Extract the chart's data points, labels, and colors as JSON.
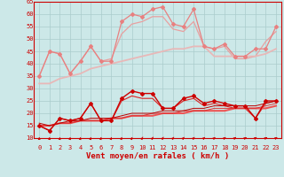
{
  "title": "",
  "xlabel": "Vent moyen/en rafales ( km/h )",
  "bg_color": "#cce8e8",
  "grid_color": "#aacccc",
  "x": [
    0,
    1,
    2,
    3,
    4,
    5,
    6,
    7,
    8,
    9,
    10,
    11,
    12,
    13,
    14,
    15,
    16,
    17,
    18,
    19,
    20,
    21,
    22,
    23
  ],
  "ylim": [
    10,
    65
  ],
  "yticks": [
    10,
    15,
    20,
    25,
    30,
    35,
    40,
    45,
    50,
    55,
    60,
    65
  ],
  "series": [
    {
      "data": [
        35,
        45,
        44,
        36,
        41,
        47,
        41,
        41,
        57,
        60,
        59,
        62,
        63,
        56,
        55,
        62,
        47,
        46,
        48,
        43,
        43,
        46,
        46,
        55
      ],
      "color": "#e88080",
      "lw": 0.9,
      "marker": "D",
      "ms": 2.0
    },
    {
      "data": [
        35,
        45,
        44,
        36,
        41,
        47,
        41,
        42,
        52,
        56,
        57,
        59,
        59,
        54,
        53,
        57,
        47,
        46,
        47,
        42,
        42,
        43,
        49,
        53
      ],
      "color": "#e8a0a0",
      "lw": 0.9,
      "marker": null,
      "ms": 0
    },
    {
      "data": [
        32,
        32,
        34,
        35,
        36,
        38,
        39,
        40,
        41,
        42,
        43,
        44,
        45,
        46,
        46,
        47,
        47,
        43,
        43,
        43,
        43,
        43,
        44,
        46
      ],
      "color": "#e8b8b8",
      "lw": 1.3,
      "marker": null,
      "ms": 0
    },
    {
      "data": [
        15,
        13,
        18,
        17,
        18,
        24,
        17,
        17,
        26,
        29,
        28,
        28,
        22,
        22,
        26,
        27,
        24,
        25,
        24,
        23,
        23,
        18,
        25,
        25
      ],
      "color": "#cc0000",
      "lw": 1.0,
      "marker": "D",
      "ms": 2.0
    },
    {
      "data": [
        15,
        13,
        18,
        17,
        18,
        24,
        17,
        17,
        25,
        27,
        26,
        26,
        22,
        22,
        25,
        26,
        23,
        24,
        23,
        22,
        22,
        18,
        24,
        25
      ],
      "color": "#dd2222",
      "lw": 0.8,
      "marker": null,
      "ms": 0
    },
    {
      "data": [
        15,
        15,
        16,
        16,
        17,
        17,
        17,
        18,
        18,
        19,
        19,
        19,
        20,
        20,
        20,
        21,
        21,
        21,
        21,
        22,
        22,
        22,
        22,
        23
      ],
      "color": "#ee5555",
      "lw": 1.5,
      "marker": null,
      "ms": 0
    },
    {
      "data": [
        15,
        15,
        16,
        16,
        17,
        17,
        17,
        18,
        18,
        19,
        19,
        20,
        20,
        20,
        21,
        21,
        21,
        22,
        22,
        22,
        22,
        22,
        23,
        24
      ],
      "color": "#dd3333",
      "lw": 0.7,
      "marker": null,
      "ms": 0
    },
    {
      "data": [
        16,
        15,
        16,
        17,
        17,
        18,
        18,
        18,
        19,
        20,
        20,
        20,
        21,
        21,
        21,
        22,
        22,
        23,
        23,
        23,
        23,
        23,
        24,
        25
      ],
      "color": "#bb0000",
      "lw": 0.7,
      "marker": null,
      "ms": 0
    }
  ],
  "xlabel_color": "#cc0000",
  "xlabel_fontsize": 6.5,
  "tick_fontsize": 5.0,
  "tick_color": "#cc0000"
}
